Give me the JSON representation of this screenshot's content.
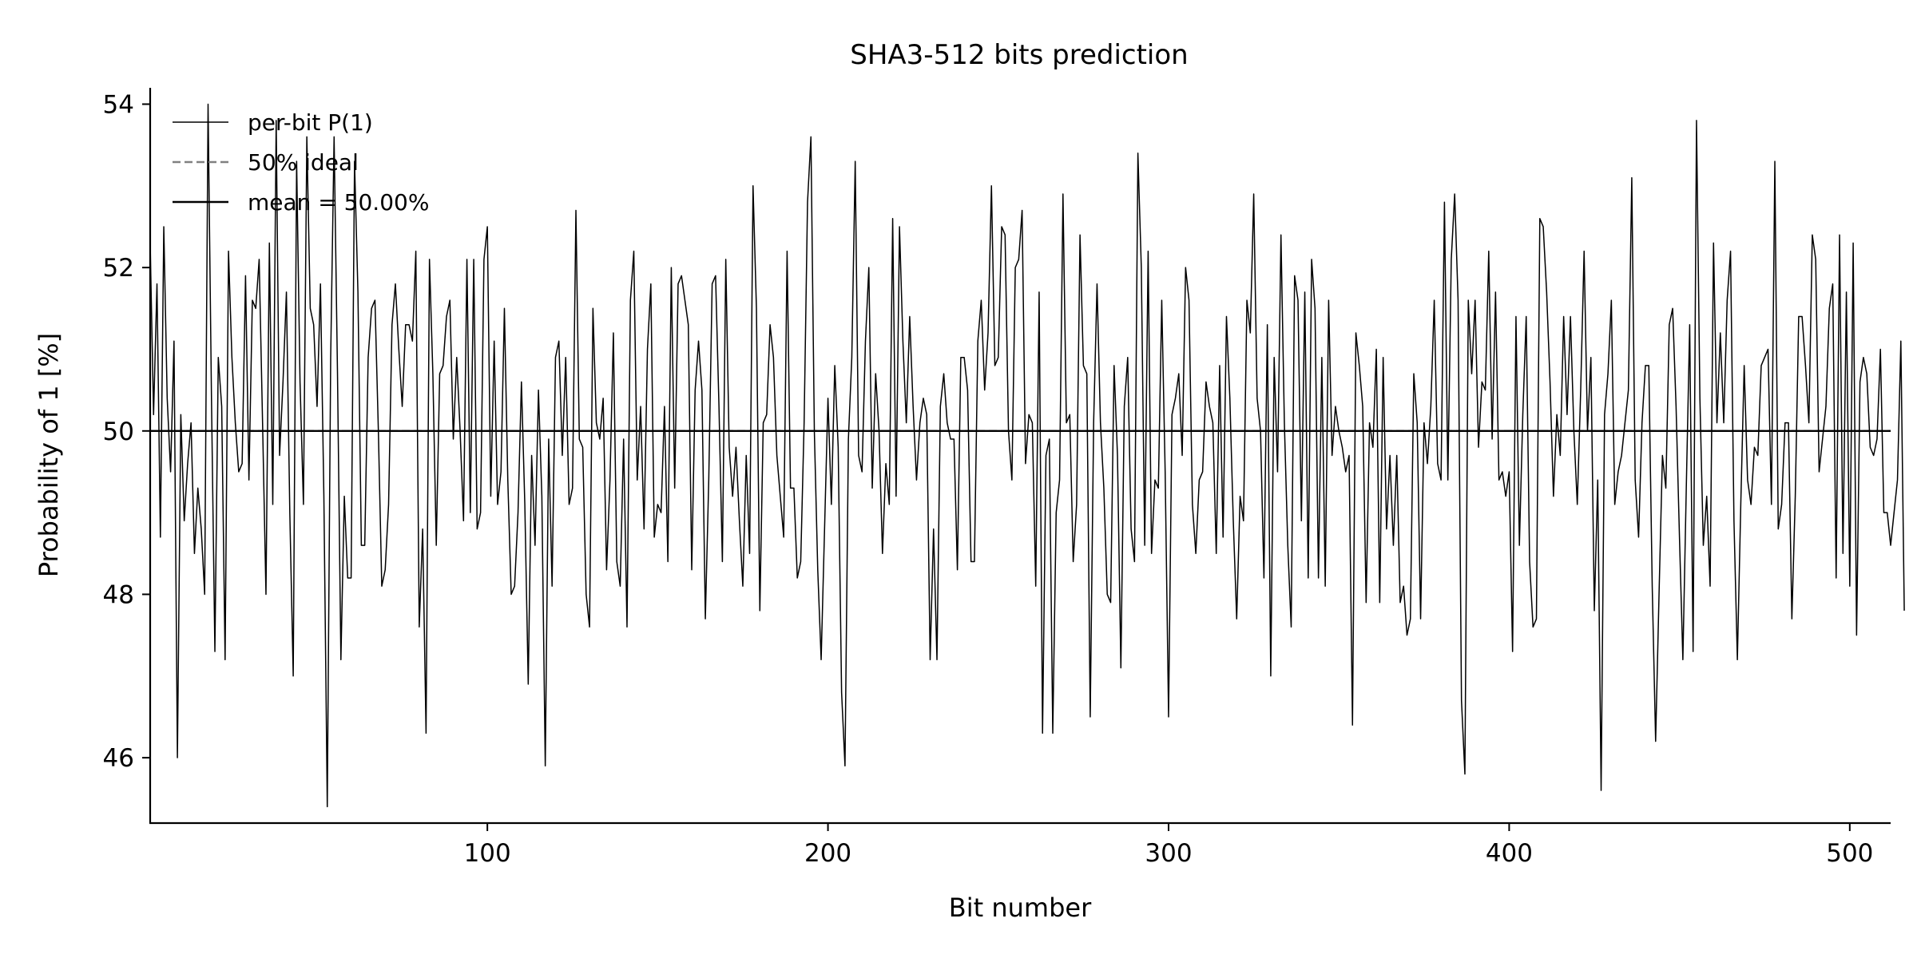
{
  "chart_data": {
    "type": "line",
    "title": "SHA3-512 bits prediction",
    "xlabel": "Bit number",
    "ylabel": "Probability of 1 [%]",
    "xlim": [
      1,
      512
    ],
    "ylim": [
      45.2,
      54.2
    ],
    "xticks": [
      100,
      200,
      300,
      400,
      500
    ],
    "yticks": [
      46,
      48,
      50,
      52,
      54
    ],
    "grid": false,
    "legend_position": "top-left",
    "legend": [
      {
        "label": "per-bit P(1)",
        "style": "solid",
        "color": "#000000"
      },
      {
        "label": "50% ideal",
        "style": "dashed",
        "color": "#808080"
      },
      {
        "label": "mean = 50.00%",
        "style": "solid",
        "color": "#000000"
      }
    ],
    "series": [
      {
        "name": "per-bit P(1)",
        "color": "#000000",
        "x_start": 1,
        "values": [
          52.3,
          50.2,
          51.8,
          48.7,
          52.5,
          50.4,
          49.5,
          51.1,
          46.0,
          50.2,
          48.9,
          49.6,
          50.1,
          48.5,
          49.3,
          48.8,
          48.0,
          54.0,
          50.4,
          47.3,
          50.9,
          50.3,
          47.2,
          52.2,
          50.9,
          50.1,
          49.5,
          49.6,
          51.9,
          49.4,
          51.6,
          51.5,
          52.1,
          50.1,
          48.0,
          52.3,
          49.1,
          53.8,
          49.7,
          50.6,
          51.7,
          49.0,
          47.0,
          53.3,
          50.6,
          49.1,
          53.6,
          51.5,
          51.3,
          50.3,
          51.8,
          49.2,
          45.4,
          50.9,
          53.6,
          50.7,
          47.2,
          49.2,
          48.2,
          48.2,
          53.3,
          51.7,
          48.6,
          48.6,
          50.9,
          51.5,
          51.6,
          50.0,
          48.1,
          48.3,
          49.1,
          51.3,
          51.8,
          51.0,
          50.3,
          51.3,
          51.3,
          51.1,
          52.2,
          47.6,
          48.8,
          46.3,
          52.1,
          50.7,
          48.6,
          50.7,
          50.8,
          51.4,
          51.6,
          49.9,
          50.9,
          50.0,
          48.9,
          52.1,
          49.0,
          52.1,
          48.8,
          49.0,
          52.1,
          52.5,
          49.2,
          51.1,
          49.1,
          49.5,
          51.5,
          49.4,
          48.0,
          48.1,
          49.0,
          50.6,
          49.1,
          46.9,
          49.7,
          48.6,
          50.5,
          49.2,
          45.9,
          49.9,
          48.1,
          50.9,
          51.1,
          49.7,
          50.9,
          49.1,
          49.3,
          52.7,
          49.9,
          49.8,
          48.0,
          47.6,
          51.5,
          50.1,
          49.9,
          50.4,
          48.3,
          49.4,
          51.2,
          48.4,
          48.1,
          49.9,
          47.6,
          51.6,
          52.2,
          49.4,
          50.3,
          48.8,
          51.0,
          51.8,
          48.7,
          49.1,
          49.0,
          50.3,
          48.4,
          52.0,
          49.3,
          51.8,
          51.9,
          51.6,
          51.3,
          48.3,
          50.5,
          51.1,
          50.5,
          47.7,
          49.4,
          51.8,
          51.9,
          50.3,
          48.4,
          52.1,
          49.8,
          49.2,
          49.8,
          48.9,
          48.1,
          49.7,
          48.5,
          53.0,
          51.5,
          47.8,
          50.1,
          50.2,
          51.3,
          50.9,
          49.7,
          49.2,
          48.7,
          52.2,
          49.3,
          49.3,
          48.2,
          48.4,
          50.1,
          52.8,
          53.6,
          50.0,
          48.3,
          47.2,
          48.8,
          50.4,
          49.1,
          50.8,
          49.8,
          46.8,
          45.9,
          49.9,
          50.9,
          53.3,
          49.7,
          49.5,
          51.1,
          52.0,
          49.3,
          50.7,
          50.0,
          48.5,
          49.6,
          49.1,
          52.6,
          49.2,
          52.5,
          51.1,
          50.1,
          51.4,
          50.3,
          49.4,
          50.1,
          50.4,
          50.2,
          47.2,
          48.8,
          47.2,
          50.3,
          50.7,
          50.1,
          49.9,
          49.9,
          48.3,
          50.9,
          50.9,
          50.5,
          48.4,
          48.4,
          51.1,
          51.6,
          50.5,
          51.2,
          53.0,
          50.8,
          50.9,
          52.5,
          52.4,
          50.0,
          49.4,
          52.0,
          52.1,
          52.7,
          49.6,
          50.2,
          50.1,
          48.1,
          51.7,
          46.3,
          49.7,
          49.9,
          46.3,
          49.0,
          49.4,
          52.9,
          50.1,
          50.2,
          48.4,
          49.1,
          52.4,
          50.8,
          50.7,
          46.5,
          50.1,
          51.8,
          50.1,
          49.3,
          48.0,
          47.9,
          50.8,
          49.7,
          47.1,
          50.3,
          50.9,
          48.8,
          48.4,
          53.4,
          52.0,
          48.6,
          52.2,
          48.5,
          49.4,
          49.3,
          51.6,
          49.5,
          46.5,
          50.2,
          50.4,
          50.7,
          49.7,
          52.0,
          51.6,
          49.1,
          48.5,
          49.4,
          49.5,
          50.6,
          50.3,
          50.1,
          48.5,
          50.8,
          48.7,
          51.4,
          50.4,
          48.9,
          47.7,
          49.2,
          48.9,
          51.6,
          51.2,
          52.9,
          50.4,
          50.0,
          48.2,
          51.3,
          47.0,
          50.9,
          49.5,
          52.4,
          50.1,
          48.6,
          47.6,
          51.9,
          51.6,
          48.9,
          51.7,
          48.2,
          52.1,
          51.5,
          48.2,
          50.9,
          48.1,
          51.6,
          49.7,
          50.3,
          50.0,
          49.8,
          49.5,
          49.7,
          46.4,
          51.2,
          50.8,
          50.3,
          47.9,
          50.1,
          49.8,
          51.0,
          47.9,
          50.9,
          48.8,
          49.7,
          48.6,
          49.7,
          47.9,
          48.1,
          47.5,
          47.7,
          50.7,
          50.1,
          47.7,
          50.1,
          49.6,
          50.3,
          51.6,
          49.6,
          49.4,
          52.8,
          49.4,
          52.1,
          52.9,
          51.6,
          46.7,
          45.8,
          51.6,
          50.7,
          51.6,
          49.8,
          50.6,
          50.5,
          52.2,
          49.9,
          51.7,
          49.4,
          49.5,
          49.2,
          49.5,
          47.3,
          51.4,
          48.6,
          50.2,
          51.4,
          48.4,
          47.6,
          47.7,
          52.6,
          52.5,
          51.7,
          50.6,
          49.2,
          50.2,
          49.7,
          51.4,
          50.2,
          51.4,
          50.0,
          49.1,
          50.5,
          52.2,
          50.0,
          50.9,
          47.8,
          49.4,
          45.6,
          50.2,
          50.7,
          51.6,
          49.1,
          49.5,
          49.7,
          50.1,
          50.5,
          53.1,
          49.4,
          48.7,
          50.1,
          50.8,
          50.8,
          48.1,
          46.2,
          48.0,
          49.7,
          49.3,
          51.3,
          51.5,
          50.3,
          48.7,
          47.2,
          49.3,
          51.3,
          47.3,
          53.8,
          50.4,
          48.6,
          49.2,
          48.1,
          52.3,
          50.1,
          51.2,
          50.1,
          51.6,
          52.2,
          48.9,
          47.2,
          49.1,
          50.8,
          49.4,
          49.1,
          49.8,
          49.7,
          50.8,
          50.9,
          51.0,
          49.1,
          53.3,
          48.8,
          49.1,
          50.1,
          50.1,
          47.7,
          49.2,
          51.4,
          51.4,
          50.8,
          50.1,
          52.4,
          52.1,
          49.5,
          49.9,
          50.3,
          51.5,
          51.8,
          48.2,
          52.4,
          48.5,
          51.7,
          48.1,
          52.3,
          47.5,
          50.6,
          50.9,
          50.7,
          49.8,
          49.7,
          49.9,
          51.0,
          49.0,
          49.0,
          48.6,
          49.0,
          49.4,
          51.1,
          47.8
        ]
      }
    ],
    "mean_line": {
      "value": 50.0,
      "label": "mean = 50.00%",
      "color": "#000000"
    },
    "ideal_line": {
      "value": 50.0,
      "label": "50% ideal",
      "color": "#808080"
    }
  }
}
